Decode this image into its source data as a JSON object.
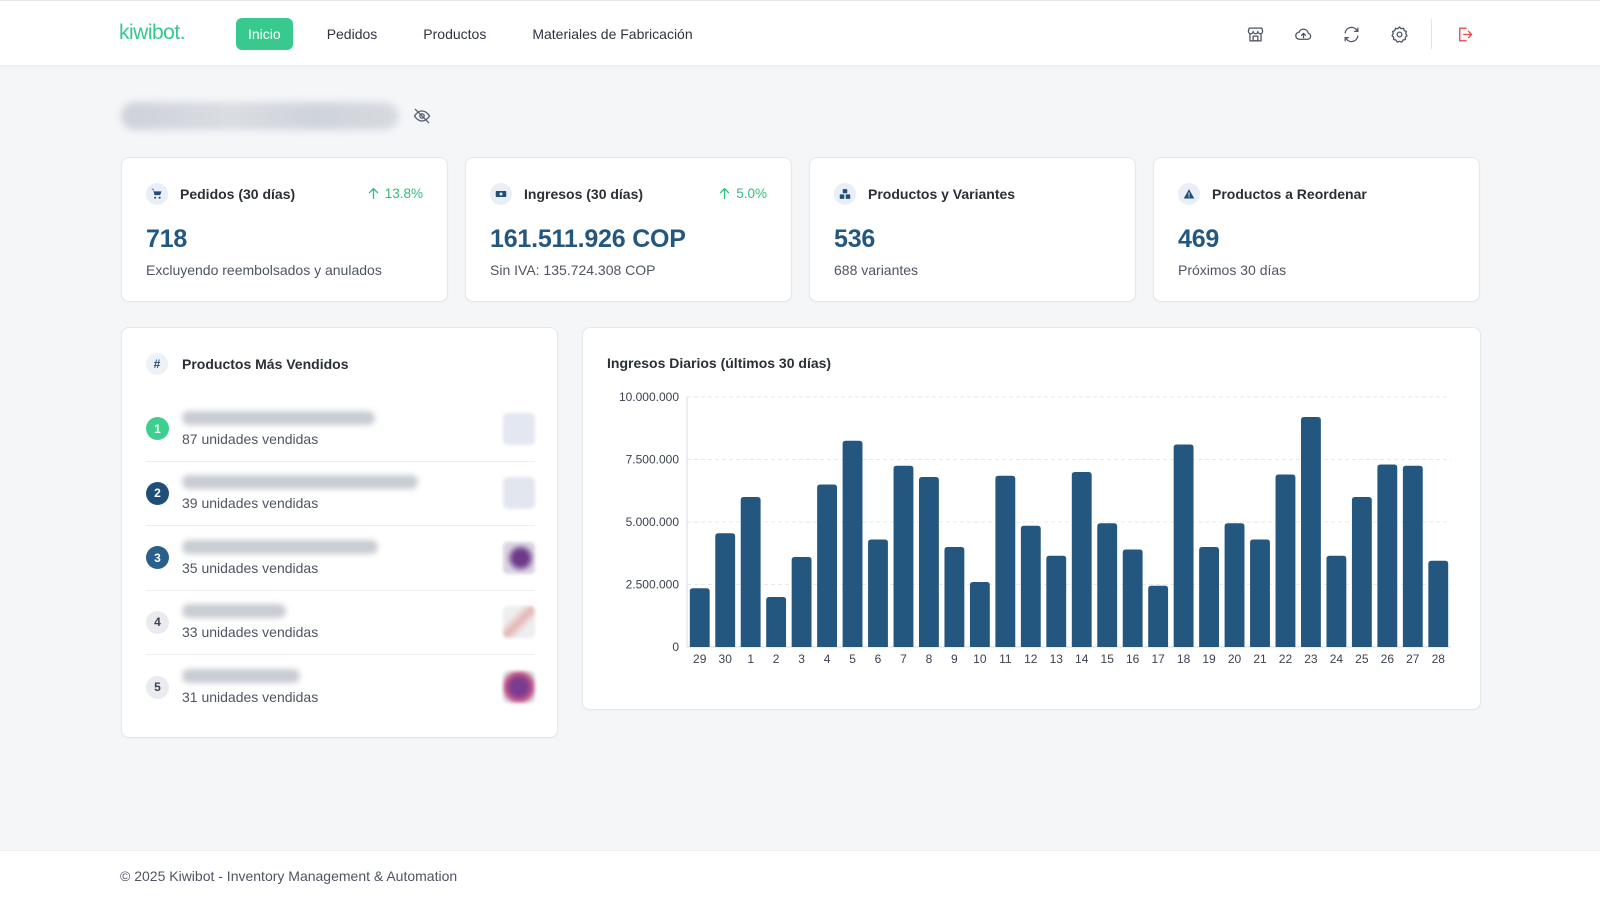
{
  "header": {
    "logo": "kiwibot.",
    "nav": [
      {
        "label": "Inicio",
        "active": true
      },
      {
        "label": "Pedidos",
        "active": false
      },
      {
        "label": "Productos",
        "active": false
      },
      {
        "label": "Materiales de Fabricación",
        "active": false
      }
    ],
    "icons": [
      "store-icon",
      "cloud-upload-icon",
      "refresh-icon",
      "gear-icon",
      "logout-icon"
    ]
  },
  "colors": {
    "accent": "#38c98f",
    "primary": "#24577f",
    "bar": "#24577f",
    "trend_up": "#2bbf7a",
    "danger": "#e5484d"
  },
  "stats": [
    {
      "icon": "cart-icon",
      "title": "Pedidos (30 días)",
      "trend": "13.8%",
      "value": "718",
      "sub": "Excluyendo reembolsados y anulados"
    },
    {
      "icon": "money-icon",
      "title": "Ingresos (30 días)",
      "trend": "5.0%",
      "value": "161.511.926 COP",
      "sub": "Sin IVA: 135.724.308 COP"
    },
    {
      "icon": "boxes-icon",
      "title": "Productos y Variantes",
      "trend": "",
      "value": "536",
      "sub": "688 variantes"
    },
    {
      "icon": "warning-icon",
      "title": "Productos a Reordenar",
      "trend": "",
      "value": "469",
      "sub": "Próximos 30 días"
    }
  ],
  "top_products": {
    "title": "Productos Más Vendidos",
    "items": [
      {
        "rank": "1",
        "sold": "87 unidades vendidas"
      },
      {
        "rank": "2",
        "sold": "39 unidades vendidas"
      },
      {
        "rank": "3",
        "sold": "35 unidades vendidas"
      },
      {
        "rank": "4",
        "sold": "33 unidades vendidas"
      },
      {
        "rank": "5",
        "sold": "31 unidades vendidas"
      }
    ]
  },
  "chart_data": {
    "type": "bar",
    "title": "Ingresos Diarios (últimos 30 días)",
    "xlabel": "",
    "ylabel": "",
    "ylim": [
      0,
      10000000
    ],
    "yticks": [
      "0",
      "2.500.000",
      "5.000.000",
      "7.500.000",
      "10.000.000"
    ],
    "grid": true,
    "categories": [
      "29",
      "30",
      "1",
      "2",
      "3",
      "4",
      "5",
      "6",
      "7",
      "8",
      "9",
      "10",
      "11",
      "12",
      "13",
      "14",
      "15",
      "16",
      "17",
      "18",
      "19",
      "20",
      "21",
      "22",
      "23",
      "24",
      "25",
      "26",
      "27",
      "28"
    ],
    "values": [
      2350000,
      4550000,
      6000000,
      2000000,
      3600000,
      6500000,
      8250000,
      4300000,
      7250000,
      6800000,
      4000000,
      2600000,
      6850000,
      4850000,
      3650000,
      7000000,
      4950000,
      3900000,
      2450000,
      8100000,
      4000000,
      4950000,
      4300000,
      6900000,
      9200000,
      3650000,
      6000000,
      7300000,
      7250000,
      3450000
    ]
  },
  "footer": {
    "text": "© 2025 Kiwibot - Inventory Management & Automation"
  }
}
